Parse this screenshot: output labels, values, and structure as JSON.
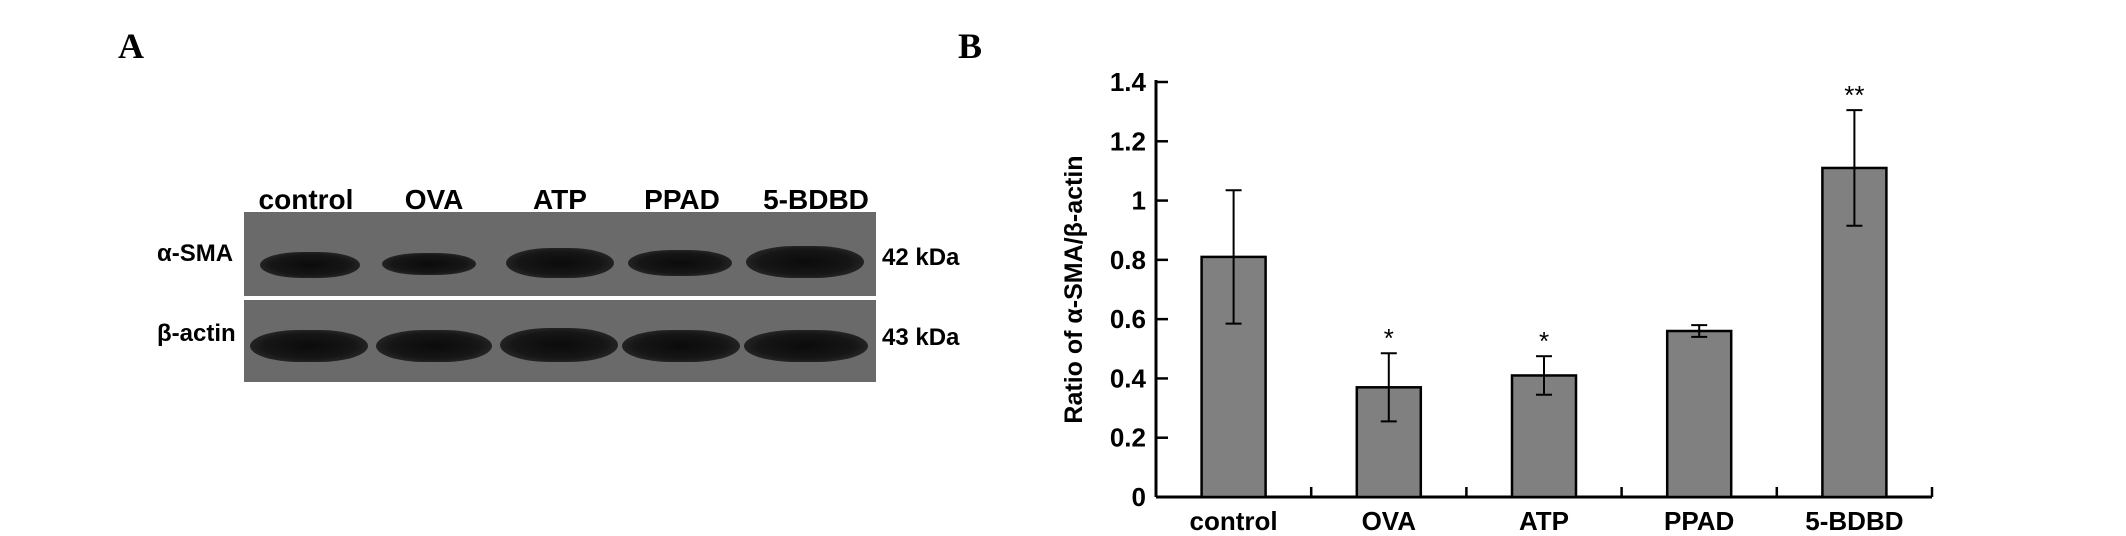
{
  "panel_a": {
    "letter": "A",
    "lanes": [
      "control",
      "OVA",
      "ATP",
      "PPAD",
      "5-BDBD"
    ],
    "rows": [
      {
        "label": "α-SMA",
        "kda": "42 kDa"
      },
      {
        "label": "β-actin",
        "kda": "43 kDa"
      }
    ]
  },
  "panel_b": {
    "letter": "B"
  },
  "chart_data": {
    "type": "bar",
    "categories": [
      "control",
      "OVA",
      "ATP",
      "PPAD",
      "5-BDBD"
    ],
    "values": [
      0.81,
      0.37,
      0.41,
      0.56,
      1.11
    ],
    "errors": [
      0.225,
      0.115,
      0.065,
      0.02,
      0.195
    ],
    "significance": [
      "",
      "*",
      "*",
      "",
      "**"
    ],
    "ylabel": "Ratio of α-SMA/β-actin",
    "ylim": [
      0,
      1.4
    ],
    "yticks": [
      0,
      0.2,
      0.4,
      0.6,
      0.8,
      1,
      1.2,
      1.4
    ],
    "ytick_labels": [
      "0",
      "0.2",
      "0.4",
      "0.6",
      "0.8",
      "1",
      "1.2",
      "1.4"
    ],
    "bar_color": "#808080",
    "grid": false
  }
}
